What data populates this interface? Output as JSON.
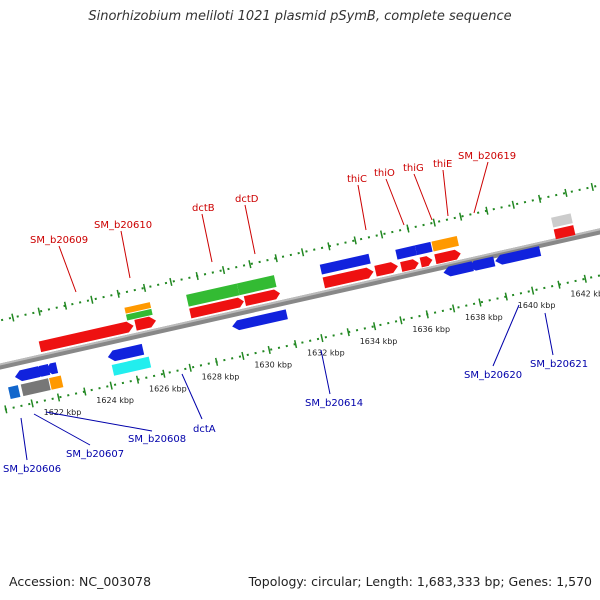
{
  "header": {
    "title": "Sinorhizobium meliloti 1021 plasmid pSymB, complete sequence"
  },
  "footer": {
    "accession": "Accession: NC_003078",
    "summary": "Topology: circular; Length: 1,683,333 bp; Genes: 1,570"
  },
  "scale": {
    "ticks": [
      "1622 kbp",
      "1624 kbp",
      "1626 kbp",
      "1628 kbp",
      "1630 kbp",
      "1632 kbp",
      "1634 kbp",
      "1636 kbp",
      "1638 kbp",
      "1640 kbp",
      "1642 kbp"
    ]
  },
  "labels": {
    "forward": [
      "SM_b20609",
      "SM_b20610",
      "dctB",
      "dctD",
      "thiC",
      "thiO",
      "thiG",
      "thiE",
      "SM_b20619"
    ],
    "reverse": [
      "SM_b20606",
      "SM_b20607",
      "SM_b20608",
      "dctA",
      "SM_b20614",
      "SM_b20620",
      "SM_b20621"
    ]
  },
  "colors": {
    "forward_label": "#cc0000",
    "reverse_label": "#0000aa",
    "gene_red": "#ee1111",
    "gene_blue": "#1122dd",
    "gene_green": "#33bb33",
    "gene_orange": "#ff9900",
    "gene_cyan": "#22eeee",
    "gene_gray": "#777777",
    "backbone": "#888888",
    "tick": "#228822"
  }
}
